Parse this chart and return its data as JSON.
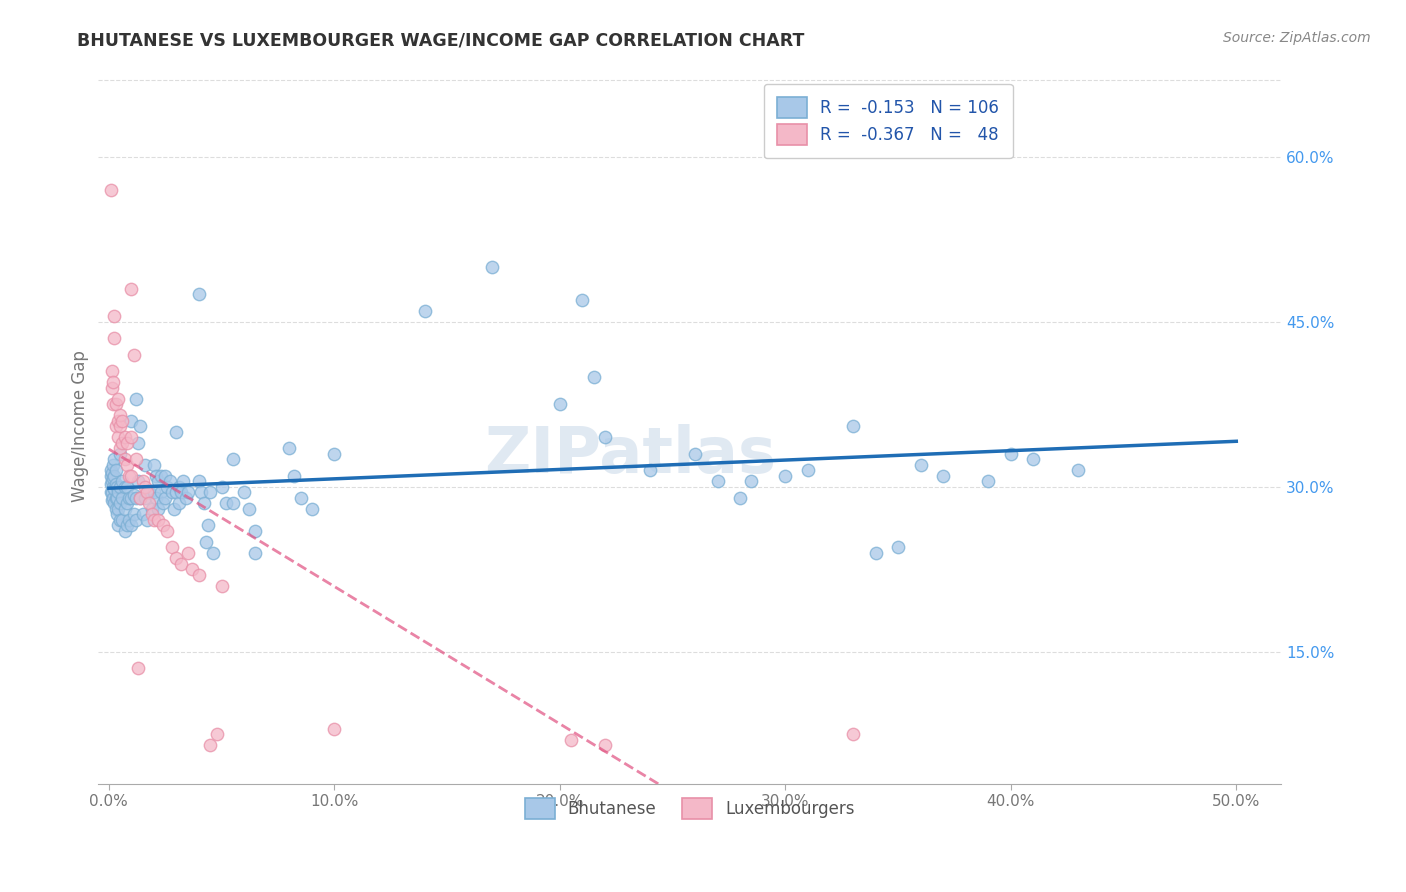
{
  "title": "BHUTANESE VS LUXEMBOURGER WAGE/INCOME GAP CORRELATION CHART",
  "source": "Source: ZipAtlas.com",
  "ylabel": "Wage/Income Gap",
  "x_tick_labels": [
    "0.0%",
    "10.0%",
    "20.0%",
    "30.0%",
    "40.0%",
    "50.0%"
  ],
  "x_ticks": [
    0.0,
    10.0,
    20.0,
    30.0,
    40.0,
    50.0
  ],
  "y_tick_labels": [
    "15.0%",
    "30.0%",
    "45.0%",
    "60.0%"
  ],
  "y_ticks": [
    15.0,
    30.0,
    45.0,
    60.0
  ],
  "xlim": [
    -0.5,
    52.0
  ],
  "ylim": [
    3.0,
    68.0
  ],
  "blue_color": "#a8c8e8",
  "blue_edge_color": "#7bafd4",
  "blue_line_color": "#1f6db5",
  "pink_color": "#f4b8c8",
  "pink_edge_color": "#e890a8",
  "pink_line_color": "#e05080",
  "blue_scatter": [
    [
      0.1,
      29.5
    ],
    [
      0.1,
      30.2
    ],
    [
      0.1,
      31.0
    ],
    [
      0.1,
      31.5
    ],
    [
      0.15,
      28.8
    ],
    [
      0.15,
      29.5
    ],
    [
      0.15,
      30.5
    ],
    [
      0.15,
      31.2
    ],
    [
      0.2,
      29.0
    ],
    [
      0.2,
      30.0
    ],
    [
      0.2,
      30.8
    ],
    [
      0.2,
      32.0
    ],
    [
      0.25,
      28.5
    ],
    [
      0.25,
      29.8
    ],
    [
      0.25,
      31.0
    ],
    [
      0.25,
      32.5
    ],
    [
      0.3,
      28.0
    ],
    [
      0.3,
      29.0
    ],
    [
      0.3,
      30.2
    ],
    [
      0.3,
      31.5
    ],
    [
      0.35,
      27.5
    ],
    [
      0.35,
      29.0
    ],
    [
      0.35,
      30.0
    ],
    [
      0.4,
      26.5
    ],
    [
      0.4,
      28.0
    ],
    [
      0.4,
      29.5
    ],
    [
      0.5,
      27.0
    ],
    [
      0.5,
      28.5
    ],
    [
      0.5,
      30.0
    ],
    [
      0.5,
      33.0
    ],
    [
      0.6,
      27.0
    ],
    [
      0.6,
      29.0
    ],
    [
      0.6,
      30.5
    ],
    [
      0.7,
      26.0
    ],
    [
      0.7,
      28.0
    ],
    [
      0.7,
      30.0
    ],
    [
      0.8,
      26.5
    ],
    [
      0.8,
      28.5
    ],
    [
      0.8,
      30.0
    ],
    [
      0.9,
      27.0
    ],
    [
      0.9,
      29.0
    ],
    [
      1.0,
      36.0
    ],
    [
      1.0,
      29.0
    ],
    [
      1.0,
      26.5
    ],
    [
      1.1,
      27.5
    ],
    [
      1.1,
      29.2
    ],
    [
      1.2,
      38.0
    ],
    [
      1.2,
      29.0
    ],
    [
      1.2,
      27.0
    ],
    [
      1.3,
      34.0
    ],
    [
      1.3,
      30.5
    ],
    [
      1.4,
      35.5
    ],
    [
      1.4,
      29.0
    ],
    [
      1.5,
      27.5
    ],
    [
      1.6,
      32.0
    ],
    [
      1.6,
      29.0
    ],
    [
      1.7,
      27.0
    ],
    [
      1.8,
      29.5
    ],
    [
      1.9,
      28.0
    ],
    [
      2.0,
      32.0
    ],
    [
      2.0,
      29.5
    ],
    [
      2.1,
      31.0
    ],
    [
      2.1,
      29.0
    ],
    [
      2.2,
      30.5
    ],
    [
      2.2,
      28.0
    ],
    [
      2.3,
      31.0
    ],
    [
      2.3,
      29.5
    ],
    [
      2.4,
      28.5
    ],
    [
      2.5,
      31.0
    ],
    [
      2.5,
      29.0
    ],
    [
      2.6,
      30.0
    ],
    [
      2.7,
      30.5
    ],
    [
      2.8,
      29.5
    ],
    [
      2.9,
      28.0
    ],
    [
      3.0,
      35.0
    ],
    [
      3.0,
      29.5
    ],
    [
      3.1,
      30.0
    ],
    [
      3.1,
      28.5
    ],
    [
      3.2,
      29.5
    ],
    [
      3.3,
      30.5
    ],
    [
      3.4,
      29.0
    ],
    [
      3.5,
      29.5
    ],
    [
      4.0,
      47.5
    ],
    [
      4.0,
      30.5
    ],
    [
      4.1,
      29.5
    ],
    [
      4.2,
      28.5
    ],
    [
      4.3,
      25.0
    ],
    [
      4.4,
      26.5
    ],
    [
      4.5,
      29.5
    ],
    [
      4.6,
      24.0
    ],
    [
      5.0,
      30.0
    ],
    [
      5.2,
      28.5
    ],
    [
      5.5,
      32.5
    ],
    [
      5.5,
      28.5
    ],
    [
      6.0,
      29.5
    ],
    [
      6.2,
      28.0
    ],
    [
      6.5,
      26.0
    ],
    [
      6.5,
      24.0
    ],
    [
      8.0,
      33.5
    ],
    [
      8.2,
      31.0
    ],
    [
      8.5,
      29.0
    ],
    [
      9.0,
      28.0
    ],
    [
      10.0,
      33.0
    ],
    [
      14.0,
      46.0
    ],
    [
      17.0,
      50.0
    ],
    [
      20.0,
      37.5
    ],
    [
      21.0,
      47.0
    ],
    [
      21.5,
      40.0
    ],
    [
      22.0,
      34.5
    ],
    [
      24.0,
      31.5
    ],
    [
      26.0,
      33.0
    ],
    [
      27.0,
      30.5
    ],
    [
      28.0,
      29.0
    ],
    [
      28.5,
      30.5
    ],
    [
      30.0,
      31.0
    ],
    [
      31.0,
      31.5
    ],
    [
      33.0,
      35.5
    ],
    [
      34.0,
      24.0
    ],
    [
      35.0,
      24.5
    ],
    [
      36.0,
      32.0
    ],
    [
      37.0,
      31.0
    ],
    [
      39.0,
      30.5
    ],
    [
      40.0,
      33.0
    ],
    [
      41.0,
      32.5
    ],
    [
      43.0,
      31.5
    ]
  ],
  "pink_scatter": [
    [
      0.1,
      57.0
    ],
    [
      0.15,
      39.0
    ],
    [
      0.15,
      40.5
    ],
    [
      0.2,
      37.5
    ],
    [
      0.2,
      39.5
    ],
    [
      0.25,
      45.5
    ],
    [
      0.25,
      43.5
    ],
    [
      0.3,
      35.5
    ],
    [
      0.3,
      37.5
    ],
    [
      0.4,
      34.5
    ],
    [
      0.4,
      36.0
    ],
    [
      0.4,
      38.0
    ],
    [
      0.5,
      33.5
    ],
    [
      0.5,
      35.5
    ],
    [
      0.5,
      36.5
    ],
    [
      0.6,
      34.0
    ],
    [
      0.6,
      36.0
    ],
    [
      0.7,
      32.5
    ],
    [
      0.7,
      34.5
    ],
    [
      0.8,
      32.0
    ],
    [
      0.8,
      34.0
    ],
    [
      0.9,
      31.0
    ],
    [
      1.0,
      48.0
    ],
    [
      1.0,
      34.5
    ],
    [
      1.0,
      31.0
    ],
    [
      1.1,
      42.0
    ],
    [
      1.2,
      32.5
    ],
    [
      1.3,
      13.5
    ],
    [
      1.4,
      29.0
    ],
    [
      1.5,
      30.5
    ],
    [
      1.6,
      30.0
    ],
    [
      1.7,
      29.5
    ],
    [
      1.8,
      28.5
    ],
    [
      1.9,
      27.5
    ],
    [
      2.0,
      27.0
    ],
    [
      2.2,
      27.0
    ],
    [
      2.4,
      26.5
    ],
    [
      2.6,
      26.0
    ],
    [
      2.8,
      24.5
    ],
    [
      3.0,
      23.5
    ],
    [
      3.2,
      23.0
    ],
    [
      3.5,
      24.0
    ],
    [
      3.7,
      22.5
    ],
    [
      4.0,
      22.0
    ],
    [
      4.5,
      6.5
    ],
    [
      4.8,
      7.5
    ],
    [
      5.0,
      21.0
    ],
    [
      10.0,
      8.0
    ],
    [
      20.5,
      7.0
    ],
    [
      22.0,
      6.5
    ],
    [
      33.0,
      7.5
    ]
  ],
  "watermark": "ZIPatlas",
  "bottom_legend": [
    "Bhutanese",
    "Luxembourgers"
  ],
  "grid_color": "#dddddd",
  "background_color": "#ffffff",
  "title_color": "#333333",
  "source_color": "#888888",
  "ylabel_color": "#777777",
  "right_tick_color": "#4499ee",
  "left_tick_color": "#777777"
}
